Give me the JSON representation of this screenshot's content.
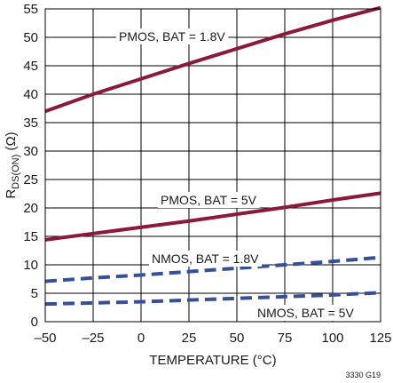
{
  "chart_data": {
    "type": "line",
    "xlabel": "TEMPERATURE (°C)",
    "ylabel": {
      "main": "R",
      "sub": "DS(ON)",
      "unit": "(Ω)"
    },
    "xlim": [
      -50,
      125
    ],
    "ylim": [
      0,
      55
    ],
    "xticks": [
      -50,
      -25,
      0,
      25,
      50,
      75,
      100,
      125
    ],
    "xtick_labels": [
      "–50",
      "–25",
      "0",
      "25",
      "50",
      "75",
      "100",
      "125"
    ],
    "yticks": [
      0,
      5,
      10,
      15,
      20,
      25,
      30,
      35,
      40,
      45,
      50,
      55
    ],
    "grid": true,
    "figure_id": "3330 G19",
    "series": [
      {
        "name": "PMOS, BAT = 1.8V",
        "color": "#8b1a3a",
        "style": "solid",
        "x": [
          -50,
          -25,
          0,
          25,
          50,
          75,
          100,
          125
        ],
        "y": [
          37,
          40,
          42.7,
          45.4,
          48,
          50.6,
          53,
          55.2
        ]
      },
      {
        "name": "PMOS, BAT = 5V",
        "color": "#8b1a3a",
        "style": "solid",
        "x": [
          -50,
          -25,
          0,
          25,
          50,
          75,
          100,
          125
        ],
        "y": [
          14.4,
          15.5,
          16.6,
          17.7,
          18.9,
          20.1,
          21.4,
          22.6
        ]
      },
      {
        "name": "NMOS, BAT = 1.8V",
        "color": "#34509a",
        "style": "dashed",
        "x": [
          -50,
          -25,
          0,
          25,
          50,
          75,
          100,
          125
        ],
        "y": [
          7.1,
          7.7,
          8.2,
          8.8,
          9.4,
          10.0,
          10.6,
          11.3
        ]
      },
      {
        "name": "NMOS, BAT = 5V",
        "color": "#34509a",
        "style": "dashed",
        "x": [
          -50,
          -25,
          0,
          25,
          50,
          75,
          100,
          125
        ],
        "y": [
          3.1,
          3.3,
          3.5,
          3.8,
          4.1,
          4.4,
          4.7,
          5.1
        ]
      }
    ]
  }
}
